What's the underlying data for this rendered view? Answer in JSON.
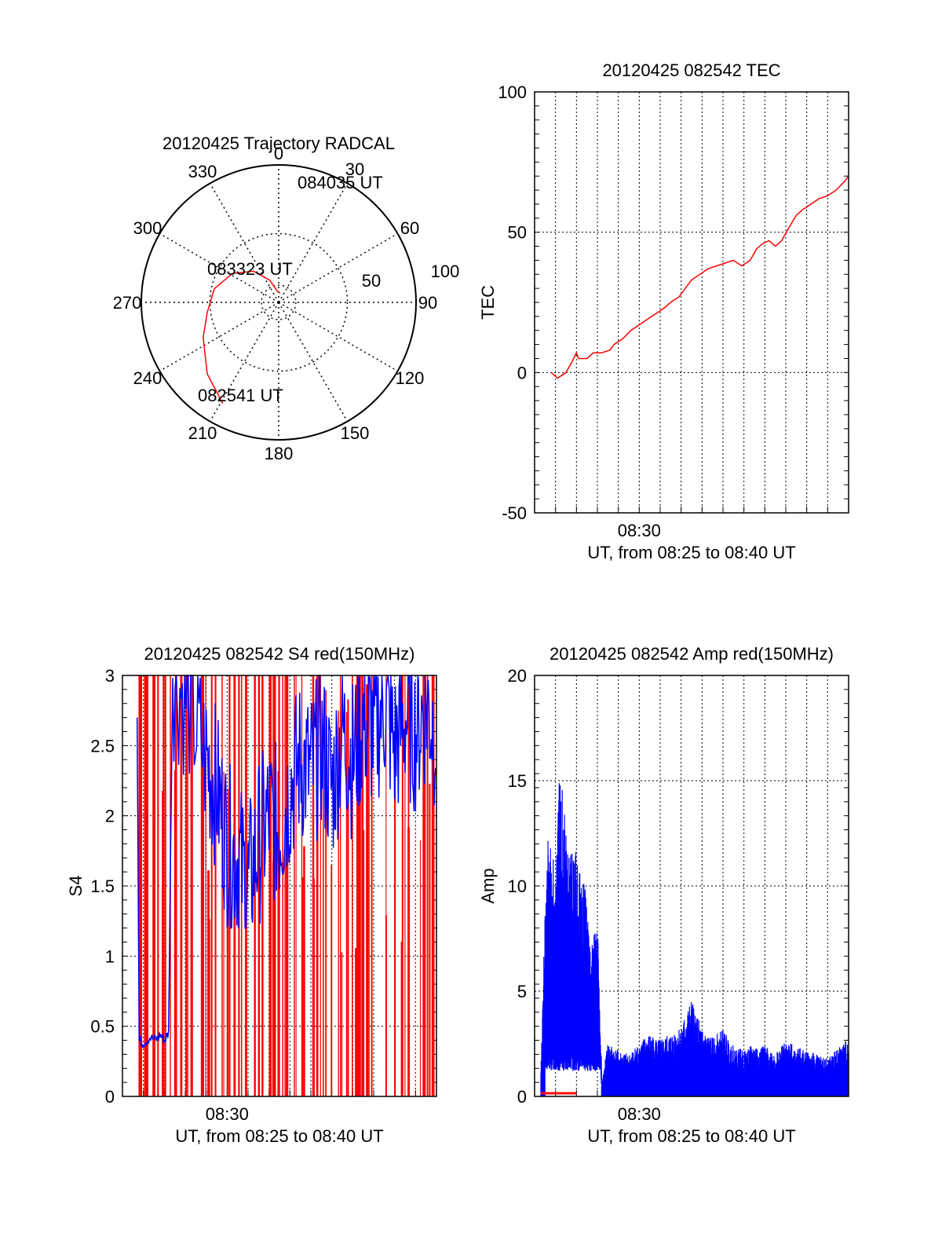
{
  "colors": {
    "red": "#ff0000",
    "blue": "#0000ff",
    "axis": "#000000",
    "grid": "#000000"
  },
  "chart_data": [
    {
      "type": "polar",
      "title": "20120425 Trajectory RADCAL",
      "angle_labels": [
        "0",
        "30",
        "60",
        "90",
        "120",
        "150",
        "180",
        "210",
        "240",
        "270",
        "300",
        "330"
      ],
      "radius_labels": [
        "50",
        "100"
      ],
      "rlim": [
        0,
        100
      ],
      "trajectory": [
        {
          "azimuth": 209,
          "elevation": 18
        },
        {
          "azimuth": 225,
          "elevation": 27
        },
        {
          "azimuth": 245,
          "elevation": 38
        },
        {
          "azimuth": 262,
          "elevation": 45
        },
        {
          "azimuth": 282,
          "elevation": 49
        },
        {
          "azimuth": 302,
          "elevation": 56
        },
        {
          "azimuth": 321,
          "elevation": 65
        },
        {
          "azimuth": 338,
          "elevation": 75
        },
        {
          "azimuth": 353,
          "elevation": 83
        },
        {
          "azimuth": 8,
          "elevation": 84
        }
      ],
      "annotations": [
        "082541 UT",
        "083323 UT",
        "084035 UT"
      ]
    },
    {
      "type": "line",
      "title": "20120425 082542 TEC",
      "ylabel": "TEC",
      "xlabel": "UT, from 08:25 to 08:40 UT",
      "xtick_label": "08:30",
      "ylim": [
        -50,
        100
      ],
      "yticks": [
        "-50",
        "0",
        "50",
        "100"
      ],
      "series": [
        {
          "values": [
            [
              0.8,
              0
            ],
            [
              1.1,
              -2
            ],
            [
              1.5,
              0
            ],
            [
              1.8,
              4
            ],
            [
              2.0,
              7
            ],
            [
              2.1,
              5
            ],
            [
              2.5,
              5
            ],
            [
              2.8,
              7
            ],
            [
              3.2,
              7
            ],
            [
              3.6,
              8
            ],
            [
              3.8,
              10
            ],
            [
              4.2,
              12
            ],
            [
              4.6,
              15
            ],
            [
              5.0,
              17
            ],
            [
              5.4,
              19
            ],
            [
              5.8,
              21
            ],
            [
              6.2,
              23
            ],
            [
              6.5,
              25
            ],
            [
              6.9,
              27
            ],
            [
              7.2,
              30
            ],
            [
              7.5,
              33
            ],
            [
              7.9,
              35
            ],
            [
              8.3,
              37
            ],
            [
              8.7,
              38
            ],
            [
              9.1,
              39
            ],
            [
              9.5,
              40
            ],
            [
              9.9,
              38
            ],
            [
              10.3,
              40
            ],
            [
              10.6,
              44
            ],
            [
              10.9,
              46
            ],
            [
              11.2,
              47
            ],
            [
              11.5,
              45
            ],
            [
              11.8,
              47
            ],
            [
              12.1,
              51
            ],
            [
              12.5,
              56
            ],
            [
              12.8,
              58
            ],
            [
              13.2,
              60
            ],
            [
              13.6,
              62
            ],
            [
              14.0,
              63
            ],
            [
              14.4,
              65
            ],
            [
              14.8,
              68
            ],
            [
              15.0,
              70
            ]
          ]
        }
      ],
      "xlim": [
        0,
        15
      ]
    },
    {
      "type": "line",
      "title": "20120425 082542 S4 red(150MHz)",
      "ylabel": "S4",
      "xlabel": "UT, from 08:25 to 08:40 UT",
      "xtick_label": "08:30",
      "ylim": [
        0,
        3
      ],
      "yticks": [
        "0",
        "0.5",
        "1",
        "1.5",
        "2",
        "2.5",
        "3"
      ],
      "xlim": [
        0,
        15
      ],
      "series": [
        {
          "color": "blue",
          "values": [
            [
              0.7,
              2.7
            ],
            [
              0.8,
              0.4
            ],
            [
              1.0,
              0.38
            ],
            [
              1.3,
              0.42
            ],
            [
              1.6,
              0.4
            ],
            [
              1.8,
              0.44
            ],
            [
              2.0,
              0.4
            ],
            [
              2.2,
              0.45
            ],
            [
              2.4,
              3
            ],
            [
              3.2,
              2.8
            ],
            [
              4.0,
              2.4
            ],
            [
              4.5,
              2.2
            ],
            [
              5.0,
              1.8
            ],
            [
              5.5,
              1.7
            ],
            [
              6.0,
              1.5
            ],
            [
              6.5,
              1.8
            ],
            [
              7.0,
              2.0
            ],
            [
              7.5,
              1.9
            ],
            [
              8.0,
              2.2
            ],
            [
              8.5,
              2.4
            ],
            [
              9.0,
              2.3
            ],
            [
              9.5,
              2.5
            ],
            [
              10.0,
              2.2
            ],
            [
              10.5,
              2.6
            ],
            [
              11.0,
              2.4
            ],
            [
              11.5,
              2.7
            ],
            [
              12.0,
              2.6
            ],
            [
              12.5,
              2.8
            ],
            [
              13.0,
              2.5
            ],
            [
              13.5,
              2.7
            ],
            [
              14.0,
              2.6
            ],
            [
              14.5,
              2.8
            ],
            [
              15.0,
              2.6
            ]
          ]
        },
        {
          "color": "red",
          "values": []
        }
      ]
    },
    {
      "type": "line",
      "title": "20120425 082542 Amp red(150MHz)",
      "ylabel": "Amp",
      "xlabel": "UT, from 08:25 to 08:40 UT",
      "xtick_label": "08:30",
      "ylim": [
        0,
        20
      ],
      "yticks": [
        "0",
        "5",
        "10",
        "15",
        "20"
      ],
      "xlim": [
        0,
        15
      ],
      "series": [
        {
          "color": "blue",
          "values": [
            [
              0.3,
              1.2
            ],
            [
              0.6,
              12.8
            ],
            [
              1.0,
              11.0
            ],
            [
              1.2,
              16.0
            ],
            [
              1.6,
              11.5
            ],
            [
              2.0,
              11.8
            ],
            [
              2.4,
              10.0
            ],
            [
              2.7,
              7.2
            ],
            [
              3.0,
              8.5
            ],
            [
              3.2,
              0.5
            ],
            [
              3.5,
              2.6
            ],
            [
              4.0,
              2.2
            ],
            [
              4.5,
              2.0
            ],
            [
              5.0,
              2.6
            ],
            [
              5.5,
              3.0
            ],
            [
              6.0,
              2.7
            ],
            [
              6.5,
              3.0
            ],
            [
              7.0,
              3.4
            ],
            [
              7.5,
              4.6
            ],
            [
              8.0,
              3.2
            ],
            [
              8.5,
              2.8
            ],
            [
              9.0,
              3.2
            ],
            [
              9.5,
              2.4
            ],
            [
              10.0,
              2.2
            ],
            [
              10.5,
              2.5
            ],
            [
              11.0,
              2.4
            ],
            [
              11.5,
              2.1
            ],
            [
              12.0,
              2.6
            ],
            [
              12.5,
              2.4
            ],
            [
              13.0,
              2.2
            ],
            [
              13.5,
              2.0
            ],
            [
              14.0,
              1.8
            ],
            [
              14.5,
              2.3
            ],
            [
              15.0,
              2.8
            ]
          ]
        },
        {
          "color": "red",
          "values": [
            [
              0.3,
              0.15
            ],
            [
              2.0,
              0.15
            ]
          ]
        }
      ]
    }
  ]
}
